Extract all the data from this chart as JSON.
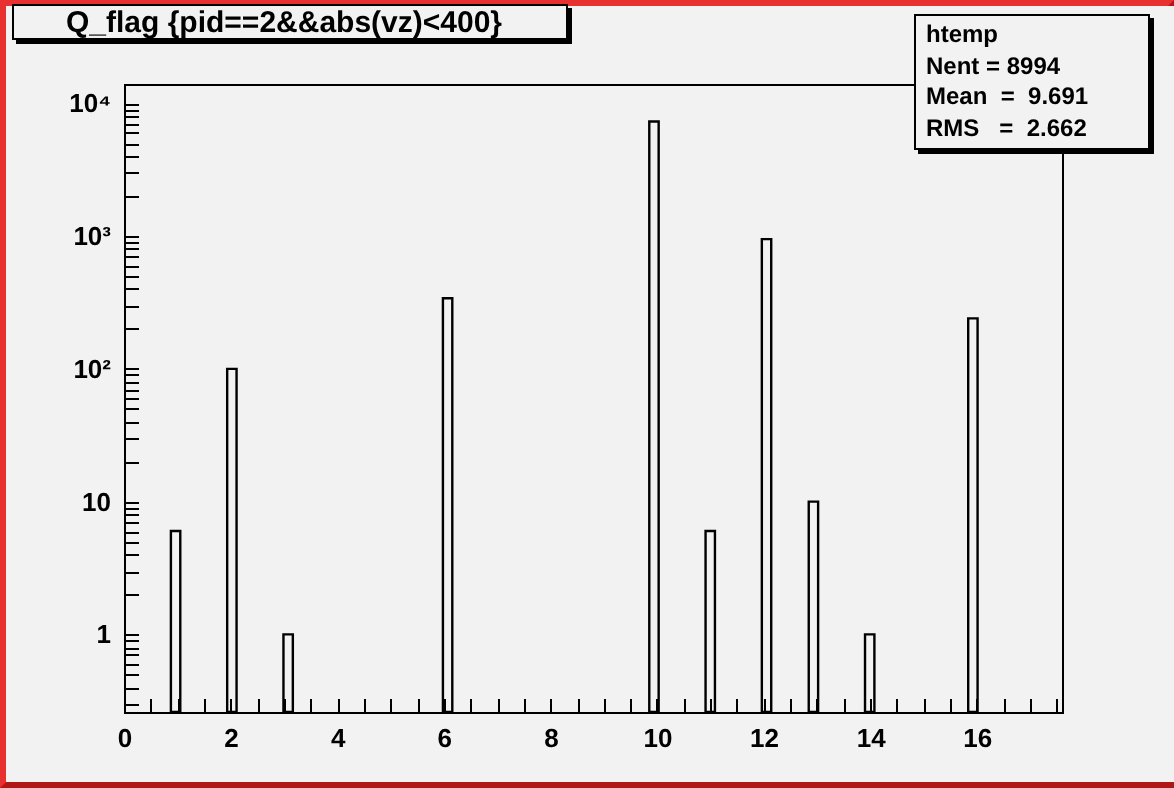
{
  "chart_data": {
    "type": "histogram",
    "title": "Q_flag {pid==2&&abs(vz)<400}",
    "bins": [
      0.88,
      1.056,
      1.936,
      2.112,
      2.992,
      3.168,
      5.984,
      6.16,
      9.856,
      10.032,
      10.912,
      11.088,
      11.968,
      12.144,
      12.848,
      13.024,
      13.904,
      14.08,
      15.84,
      16.016
    ],
    "values": [
      6,
      null,
      100,
      null,
      1,
      null,
      340,
      null,
      7300,
      null,
      6,
      null,
      950,
      null,
      10,
      null,
      1,
      null,
      240
    ],
    "color": "#000000",
    "log": "y",
    "xlim": [
      0,
      17.6
    ],
    "xticks": [
      0,
      {
        "value": 0.5,
        "label": null
      },
      {
        "value": 1,
        "label": null
      },
      {
        "value": 1.5,
        "label": null
      },
      2,
      {
        "value": 2.5,
        "label": null
      },
      {
        "value": 3,
        "label": null
      },
      {
        "value": 3.5,
        "label": null
      },
      4,
      {
        "value": 4.5,
        "label": null
      },
      {
        "value": 5,
        "label": null
      },
      {
        "value": 5.5,
        "label": null
      },
      6,
      {
        "value": 6.5,
        "label": null
      },
      {
        "value": 7,
        "label": null
      },
      {
        "value": 7.5,
        "label": null
      },
      8,
      {
        "value": 8.5,
        "label": null
      },
      {
        "value": 9,
        "label": null
      },
      {
        "value": 9.5,
        "label": null
      },
      10,
      {
        "value": 10.5,
        "label": null
      },
      {
        "value": 11,
        "label": null
      },
      {
        "value": 11.5,
        "label": null
      },
      12,
      {
        "value": 12.5,
        "label": null
      },
      {
        "value": 13,
        "label": null
      },
      {
        "value": 13.5,
        "label": null
      },
      14,
      {
        "value": 14.5,
        "label": null
      },
      {
        "value": 15,
        "label": null
      },
      {
        "value": 15.5,
        "label": null
      },
      16,
      {
        "value": 16.5,
        "label": null
      },
      {
        "value": 17,
        "label": null
      },
      {
        "value": 17.5,
        "label": null
      }
    ],
    "ylim": [
      0.26,
      14000
    ],
    "yticks": [
      {
        "value": 0.3,
        "label": null
      },
      {
        "value": 0.4,
        "label": null
      },
      {
        "value": 0.5,
        "label": null
      },
      {
        "value": 0.6,
        "label": null
      },
      {
        "value": 0.7,
        "label": null
      },
      {
        "value": 0.8,
        "label": null
      },
      {
        "value": 0.9,
        "label": null
      },
      1,
      {
        "value": 2,
        "label": null
      },
      {
        "value": 3,
        "label": null
      },
      {
        "value": 4,
        "label": null
      },
      {
        "value": 5,
        "label": null
      },
      {
        "value": 6,
        "label": null
      },
      {
        "value": 7,
        "label": null
      },
      {
        "value": 8,
        "label": null
      },
      {
        "value": 9,
        "label": null
      },
      10,
      {
        "value": 20,
        "label": null
      },
      {
        "value": 30,
        "label": null
      },
      {
        "value": 40,
        "label": null
      },
      {
        "value": 50,
        "label": null
      },
      {
        "value": 60,
        "label": null
      },
      {
        "value": 70,
        "label": null
      },
      {
        "value": 80,
        "label": null
      },
      {
        "value": 90,
        "label": null
      },
      {
        "value": 100,
        "label": "10²"
      },
      {
        "value": 200,
        "label": null
      },
      {
        "value": 300,
        "label": null
      },
      {
        "value": 400,
        "label": null
      },
      {
        "value": 500,
        "label": null
      },
      {
        "value": 600,
        "label": null
      },
      {
        "value": 700,
        "label": null
      },
      {
        "value": 800,
        "label": null
      },
      {
        "value": 900,
        "label": null
      },
      {
        "value": 1000,
        "label": "10³"
      },
      {
        "value": 2000,
        "label": null
      },
      {
        "value": 3000,
        "label": null
      },
      {
        "value": 4000,
        "label": null
      },
      {
        "value": 5000,
        "label": null
      },
      {
        "value": 6000,
        "label": null
      },
      {
        "value": 7000,
        "label": null
      },
      {
        "value": 8000,
        "label": null
      },
      {
        "value": 9000,
        "label": null
      },
      {
        "value": 10000,
        "label": "10⁴"
      }
    ],
    "annotations": [
      "htemp",
      "Nent = 8994",
      "Mean  =  9.691",
      "RMS   =  2.662"
    ]
  }
}
